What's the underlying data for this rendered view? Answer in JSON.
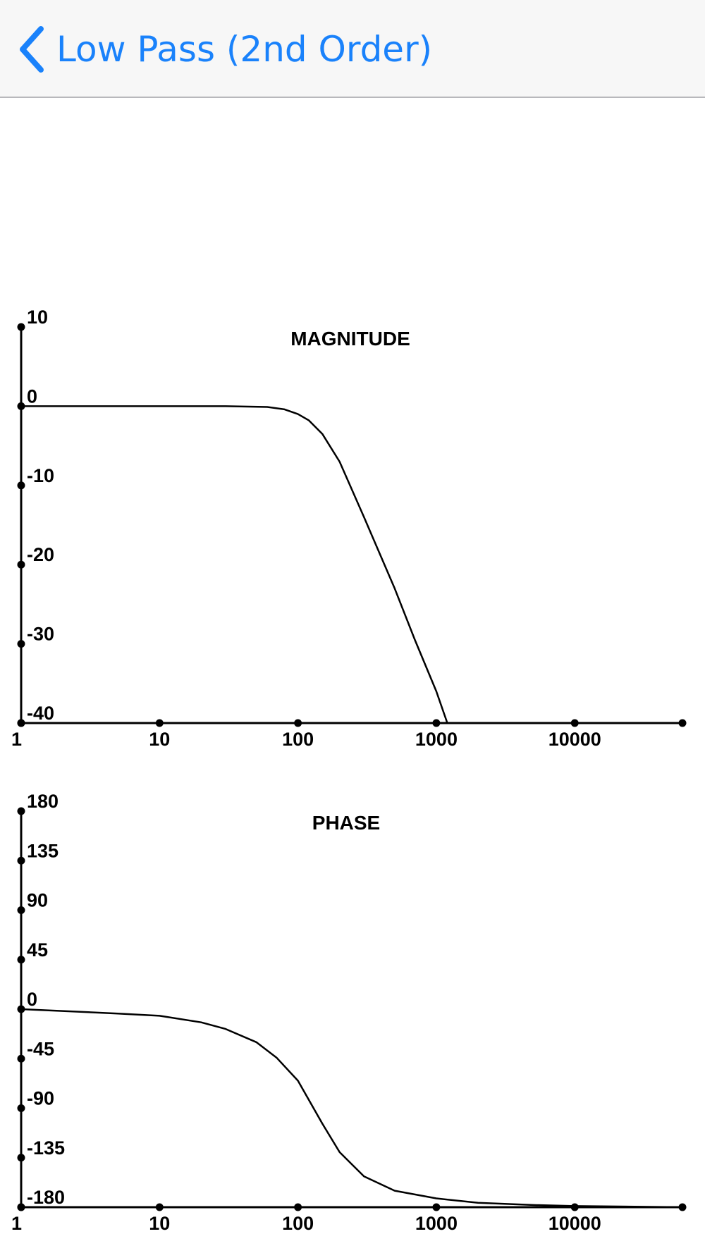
{
  "nav": {
    "back_icon": "chevron-left-icon",
    "title": "Low Pass (2nd Order)",
    "accent_color": "#1a82fb"
  },
  "chart_data": [
    {
      "type": "line",
      "title": "MAGNITUDE",
      "xscale": "log",
      "xlim": [
        1,
        60000
      ],
      "ylim": [
        -40,
        10
      ],
      "x_ticks": [
        1,
        10,
        100,
        1000,
        10000,
        60000
      ],
      "x_tick_labels": [
        "1",
        "10",
        "100",
        "1000",
        "10000",
        ""
      ],
      "y_ticks": [
        10,
        0,
        -10,
        -20,
        -30,
        -40
      ],
      "y_tick_labels": [
        "10",
        "0",
        "-10",
        "-20",
        "-30",
        "-40"
      ],
      "grid": false,
      "series": [
        {
          "x": [
            1,
            10,
            30,
            60,
            80,
            100,
            120,
            150,
            200,
            300,
            500,
            700,
            1000,
            1200
          ],
          "y": [
            0,
            0,
            0,
            -0.1,
            -0.4,
            -1.0,
            -1.8,
            -3.5,
            -7.0,
            -14.0,
            -23.0,
            -29.5,
            -36.0,
            -40.0
          ]
        }
      ]
    },
    {
      "type": "line",
      "title": "PHASE",
      "xscale": "log",
      "xlim": [
        1,
        60000
      ],
      "ylim": [
        -180,
        180
      ],
      "x_ticks": [
        1,
        10,
        100,
        1000,
        10000,
        60000
      ],
      "x_tick_labels": [
        "1",
        "10",
        "100",
        "1000",
        "10000",
        ""
      ],
      "y_ticks": [
        180,
        135,
        90,
        45,
        0,
        -45,
        -90,
        -135,
        -180
      ],
      "y_tick_labels": [
        "180",
        "135",
        "90",
        "45",
        "0",
        "-45",
        "-90",
        "-135",
        "-180"
      ],
      "grid": false,
      "series": [
        {
          "x": [
            1,
            5,
            10,
            20,
            30,
            50,
            70,
            100,
            150,
            200,
            300,
            500,
            1000,
            2000,
            5000,
            10000,
            60000
          ],
          "y": [
            0,
            -4,
            -6,
            -12,
            -18,
            -30,
            -44,
            -65,
            -104,
            -130,
            -152,
            -165,
            -172,
            -176,
            -178,
            -179,
            -180
          ]
        }
      ]
    }
  ]
}
